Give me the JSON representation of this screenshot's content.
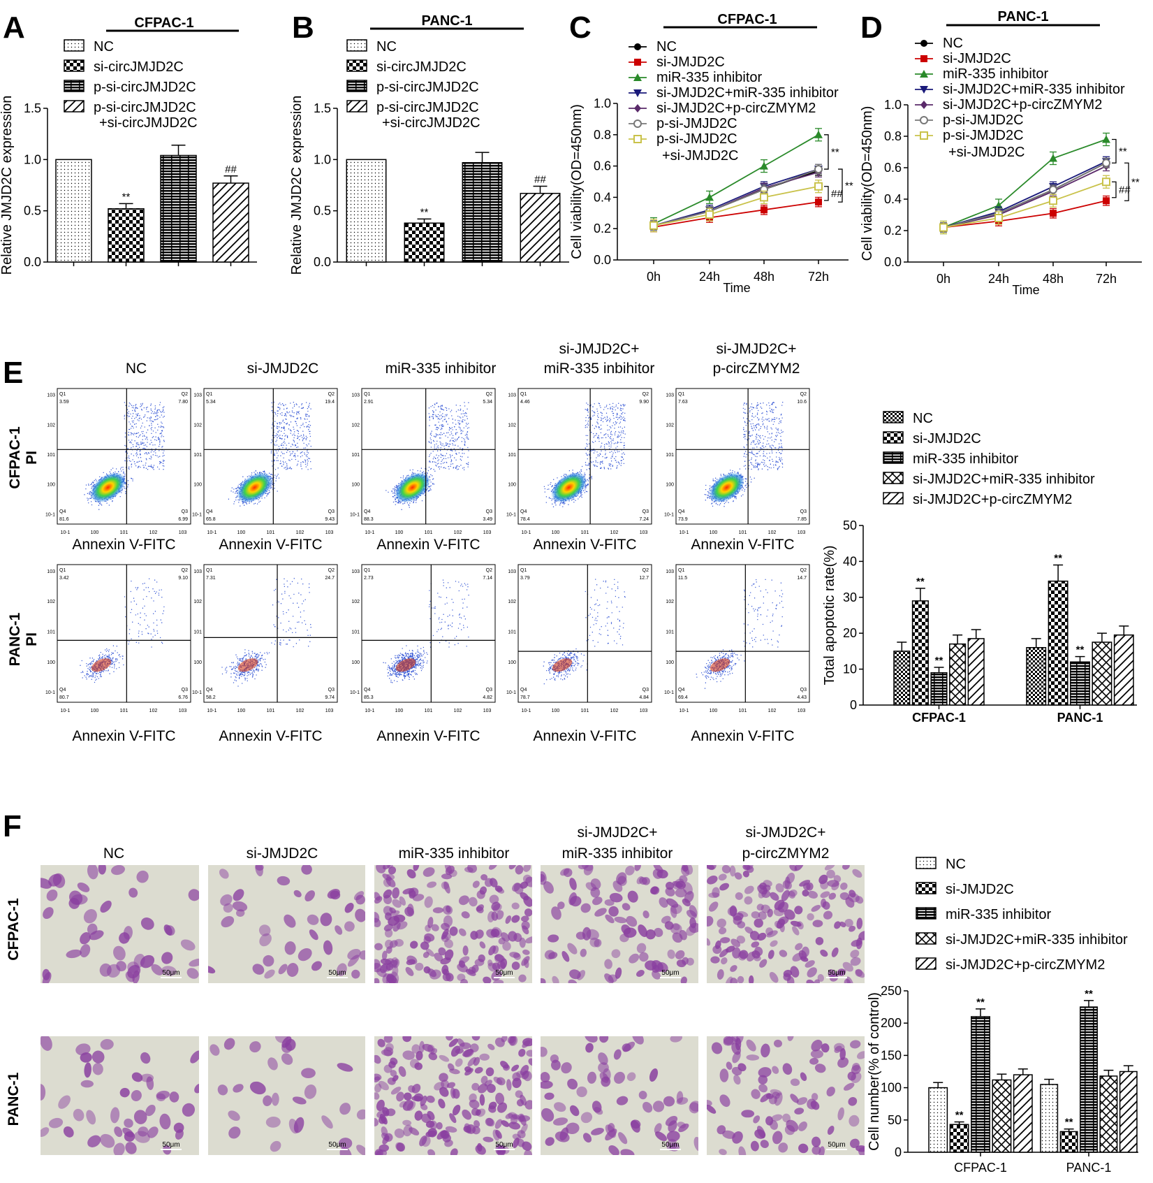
{
  "panels": {
    "A": {
      "label": "A",
      "header": "CFPAC-1"
    },
    "B": {
      "label": "B",
      "header": "PANC-1"
    },
    "C": {
      "label": "C",
      "header": "CFPAC-1"
    },
    "D": {
      "label": "D",
      "header": "PANC-1"
    },
    "E": {
      "label": "E"
    },
    "F": {
      "label": "F"
    }
  },
  "colors": {
    "NC": "#000000",
    "si_JMJD2C": "#cc0000",
    "miR_335_inhibitor": "#2a8a2a",
    "si_JMJD2C_miR": "#1a1a7a",
    "si_JMJD2C_p_circ": "#5a2a6a",
    "p_si_JMJD2C": "#777777",
    "p_si_plus_si": "#c9c24a",
    "stain": "#8a3fa0",
    "bg": "#dcdcd0"
  },
  "flow": {
    "col_titles": [
      "NC",
      "si-JMJD2C",
      "miR-335 inhibitor",
      "si-JMJD2C+\nmiR-335 inbihitor",
      "si-JMJD2C+\np-circZMYM2"
    ],
    "rows": [
      "CFPAC-1",
      "PANC-1"
    ],
    "ylabel": "PI",
    "xlabel": "Annexin V-FITC",
    "tick_labels": [
      "10-1",
      "100",
      "101",
      "102",
      "103"
    ],
    "quadrant_names": [
      "Q1",
      "Q2",
      "Q3",
      "Q4"
    ],
    "quadrants": [
      [
        [
          "3.59",
          "7.80",
          "6.99",
          "81.6"
        ],
        [
          "5.34",
          "19.4",
          "9.43",
          "65.8"
        ],
        [
          "2.91",
          "5.34",
          "3.49",
          "88.3"
        ],
        [
          "4.46",
          "9.90",
          "7.24",
          "78.4"
        ],
        [
          "7.63",
          "10.6",
          "7.85",
          "73.9"
        ]
      ],
      [
        [
          "3.42",
          "9.10",
          "6.76",
          "80.7"
        ],
        [
          "7.31",
          "24.7",
          "9.74",
          "58.2"
        ],
        [
          "2.73",
          "7.14",
          "4.82",
          "85.3"
        ],
        [
          "3.79",
          "12.7",
          "4.84",
          "78.7"
        ],
        [
          "11.5",
          "14.7",
          "4.43",
          "69.4"
        ]
      ]
    ]
  },
  "colony": {
    "col_titles": [
      "NC",
      "si-JMJD2C",
      "miR-335 inhibitor",
      "si-JMJD2C+\nmiR-335 inhibitor",
      "si-JMJD2C+\np-circZMYM2"
    ],
    "rows": [
      "CFPAC-1",
      "PANC-1"
    ],
    "scale_bar": "50μm"
  },
  "chart_data": [
    {
      "panel": "A",
      "type": "bar",
      "title": "CFPAC-1",
      "ylabel": "Relative JMJD2C expression",
      "ylim": [
        0,
        1.5
      ],
      "yticks": [
        0.0,
        0.5,
        1.0,
        1.5
      ],
      "series": [
        {
          "name": "NC",
          "value": 1.0,
          "err": 0,
          "pattern": "dots",
          "mark": ""
        },
        {
          "name": "si-circJMJD2C",
          "value": 0.52,
          "err": 0.05,
          "pattern": "checker",
          "mark": "**"
        },
        {
          "name": "p-si-circJMJD2C",
          "value": 1.04,
          "err": 0.1,
          "pattern": "brick",
          "mark": ""
        },
        {
          "name": "p-si-circJMJD2C\n+si-circJMJD2C",
          "value": 0.77,
          "err": 0.07,
          "pattern": "diag",
          "mark": "##"
        }
      ]
    },
    {
      "panel": "B",
      "type": "bar",
      "title": "PANC-1",
      "ylabel": "Relative JMJD2C expression",
      "ylim": [
        0,
        1.5
      ],
      "yticks": [
        0.0,
        0.5,
        1.0,
        1.5
      ],
      "series": [
        {
          "name": "NC",
          "value": 1.0,
          "err": 0,
          "pattern": "dots",
          "mark": ""
        },
        {
          "name": "si-circJMJD2C",
          "value": 0.38,
          "err": 0.04,
          "pattern": "checker",
          "mark": "**"
        },
        {
          "name": "p-si-circJMJD2C",
          "value": 0.97,
          "err": 0.1,
          "pattern": "brick",
          "mark": ""
        },
        {
          "name": "p-si-circJMJD2C\n+si-circJMJD2C",
          "value": 0.67,
          "err": 0.07,
          "pattern": "diag",
          "mark": "##"
        }
      ]
    },
    {
      "panel": "C",
      "type": "line",
      "title": "CFPAC-1",
      "xlabel": "Time",
      "ylabel": "Cell viability(OD=450nm)",
      "x": [
        "0h",
        "24h",
        "48h",
        "72h"
      ],
      "ylim": [
        0,
        1.0
      ],
      "yticks": [
        0.0,
        0.2,
        0.4,
        0.6,
        0.8,
        1.0
      ],
      "series": [
        {
          "name": "NC",
          "values": [
            0.22,
            0.31,
            0.45,
            0.57
          ],
          "err": 0.03,
          "color": "#000000",
          "marker": "circle"
        },
        {
          "name": "si-JMJD2C",
          "values": [
            0.21,
            0.27,
            0.32,
            0.37
          ],
          "err": 0.03,
          "color": "#cc0000",
          "marker": "square"
        },
        {
          "name": "miR-335 inhibitor",
          "values": [
            0.23,
            0.4,
            0.6,
            0.8
          ],
          "err": 0.04,
          "color": "#2a8a2a",
          "marker": "triangle"
        },
        {
          "name": "si-JMJD2C+miR-335 inhibitor",
          "values": [
            0.22,
            0.32,
            0.47,
            0.58
          ],
          "err": 0.03,
          "color": "#1a1a7a",
          "marker": "tri-down"
        },
        {
          "name": "si-JMJD2C+p-circZMYM2",
          "values": [
            0.22,
            0.31,
            0.46,
            0.56
          ],
          "err": 0.03,
          "color": "#5a2a6a",
          "marker": "diamond"
        },
        {
          "name": "p-si-JMJD2C",
          "values": [
            0.22,
            0.31,
            0.45,
            0.58
          ],
          "err": 0.03,
          "color": "#777777",
          "marker": "open-circle"
        },
        {
          "name": "p-si-JMJD2C\n+si-JMJD2C",
          "values": [
            0.22,
            0.29,
            0.4,
            0.47
          ],
          "err": 0.04,
          "color": "#c9c24a",
          "marker": "open-square"
        }
      ],
      "annotations": [
        "**",
        "**",
        "##"
      ]
    },
    {
      "panel": "D",
      "type": "line",
      "title": "PANC-1",
      "xlabel": "Time",
      "ylabel": "Cell viability(OD=450nm)",
      "x": [
        "0h",
        "24h",
        "48h",
        "72h"
      ],
      "ylim": [
        0,
        1.0
      ],
      "yticks": [
        0.0,
        0.2,
        0.4,
        0.6,
        0.8,
        1.0
      ],
      "series": [
        {
          "name": "NC",
          "values": [
            0.22,
            0.31,
            0.46,
            0.63
          ],
          "err": 0.03,
          "color": "#000000",
          "marker": "circle"
        },
        {
          "name": "si-JMJD2C",
          "values": [
            0.22,
            0.26,
            0.31,
            0.39
          ],
          "err": 0.03,
          "color": "#cc0000",
          "marker": "square"
        },
        {
          "name": "miR-335 inhibitor",
          "values": [
            0.22,
            0.36,
            0.66,
            0.78
          ],
          "err": 0.04,
          "color": "#2a8a2a",
          "marker": "triangle"
        },
        {
          "name": "si-JMJD2C+miR-335 inhibitor",
          "values": [
            0.22,
            0.32,
            0.48,
            0.64
          ],
          "err": 0.03,
          "color": "#1a1a7a",
          "marker": "tri-down"
        },
        {
          "name": "si-JMJD2C+p-circZMYM2",
          "values": [
            0.22,
            0.3,
            0.45,
            0.61
          ],
          "err": 0.03,
          "color": "#5a2a6a",
          "marker": "diamond"
        },
        {
          "name": "p-si-JMJD2C",
          "values": [
            0.22,
            0.31,
            0.46,
            0.63
          ],
          "err": 0.03,
          "color": "#777777",
          "marker": "open-circle"
        },
        {
          "name": "p-si-JMJD2C\n+si-JMJD2C",
          "values": [
            0.22,
            0.28,
            0.39,
            0.51
          ],
          "err": 0.04,
          "color": "#c9c24a",
          "marker": "open-square"
        }
      ],
      "annotations": [
        "**",
        "**",
        "##"
      ]
    },
    {
      "panel": "E",
      "type": "bar",
      "ylabel": "Total apoptotic rate(%)",
      "ylim": [
        0,
        50
      ],
      "yticks": [
        0,
        10,
        20,
        30,
        40,
        50
      ],
      "categories": [
        "CFPAC-1",
        "PANC-1"
      ],
      "series": [
        {
          "name": "NC",
          "values": [
            15,
            16
          ],
          "err": [
            2.5,
            2.5
          ],
          "pattern": "smallchecker",
          "marks": [
            "",
            ""
          ]
        },
        {
          "name": "si-JMJD2C",
          "values": [
            29,
            34.5
          ],
          "err": [
            3.5,
            4.5
          ],
          "pattern": "checker",
          "marks": [
            "**",
            "**"
          ]
        },
        {
          "name": "miR-335 inhibitor",
          "values": [
            9,
            12
          ],
          "err": [
            1.5,
            1.5
          ],
          "pattern": "brick",
          "marks": [
            "**",
            "**"
          ]
        },
        {
          "name": "si-JMJD2C+miR-335 inhibitor",
          "values": [
            17,
            17.5
          ],
          "err": [
            2.5,
            2.5
          ],
          "pattern": "cross",
          "marks": [
            "",
            ""
          ]
        },
        {
          "name": "si-JMJD2C+p-circZMYM2",
          "values": [
            18.5,
            19.5
          ],
          "err": [
            2.5,
            2.5
          ],
          "pattern": "diag",
          "marks": [
            "",
            ""
          ]
        }
      ]
    },
    {
      "panel": "F",
      "type": "bar",
      "ylabel": "Cell number(% of control)",
      "ylim": [
        0,
        250
      ],
      "yticks": [
        0,
        50,
        100,
        150,
        200,
        250
      ],
      "categories": [
        "CFPAC-1",
        "PANC-1"
      ],
      "series": [
        {
          "name": "NC",
          "values": [
            100,
            105
          ],
          "err": [
            8,
            8
          ],
          "pattern": "dots",
          "marks": [
            "",
            ""
          ]
        },
        {
          "name": "si-JMJD2C",
          "values": [
            43,
            32
          ],
          "err": [
            4,
            4
          ],
          "pattern": "checker",
          "marks": [
            "**",
            "**"
          ]
        },
        {
          "name": "miR-335 inhibitor",
          "values": [
            210,
            225
          ],
          "err": [
            12,
            10
          ],
          "pattern": "brick",
          "marks": [
            "**",
            "**"
          ]
        },
        {
          "name": "si-JMJD2C+miR-335 inhibitor",
          "values": [
            112,
            118
          ],
          "err": [
            9,
            9
          ],
          "pattern": "cross",
          "marks": [
            "",
            ""
          ]
        },
        {
          "name": "si-JMJD2C+p-circZMYM2",
          "values": [
            120,
            125
          ],
          "err": [
            9,
            9
          ],
          "pattern": "diag",
          "marks": [
            "",
            ""
          ]
        }
      ]
    }
  ]
}
